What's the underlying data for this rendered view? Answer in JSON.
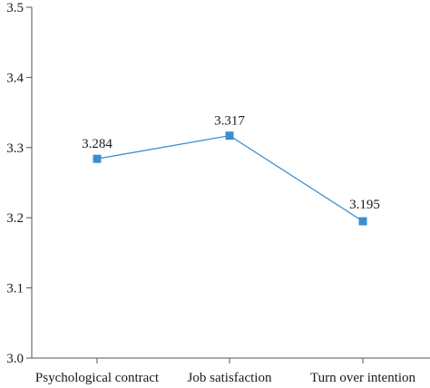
{
  "chart_data": {
    "type": "line",
    "title": "",
    "xlabel": "",
    "ylabel": "",
    "categories": [
      "Psychological contract",
      "Job satisfaction",
      "Turn over intention"
    ],
    "series": [
      {
        "values": [
          3.284,
          3.317,
          3.195
        ],
        "value_labels": [
          "3.284",
          "3.317",
          "3.195"
        ],
        "color": "#3a8fd0",
        "marker": "square"
      }
    ],
    "ylim": [
      3.0,
      3.5
    ],
    "yticks": [
      3.0,
      3.1,
      3.2,
      3.3,
      3.4,
      3.5
    ],
    "ytick_labels": [
      "3.0",
      "3.1",
      "3.2",
      "3.3",
      "3.4",
      "3.5"
    ],
    "grid": false,
    "legend": "none"
  }
}
